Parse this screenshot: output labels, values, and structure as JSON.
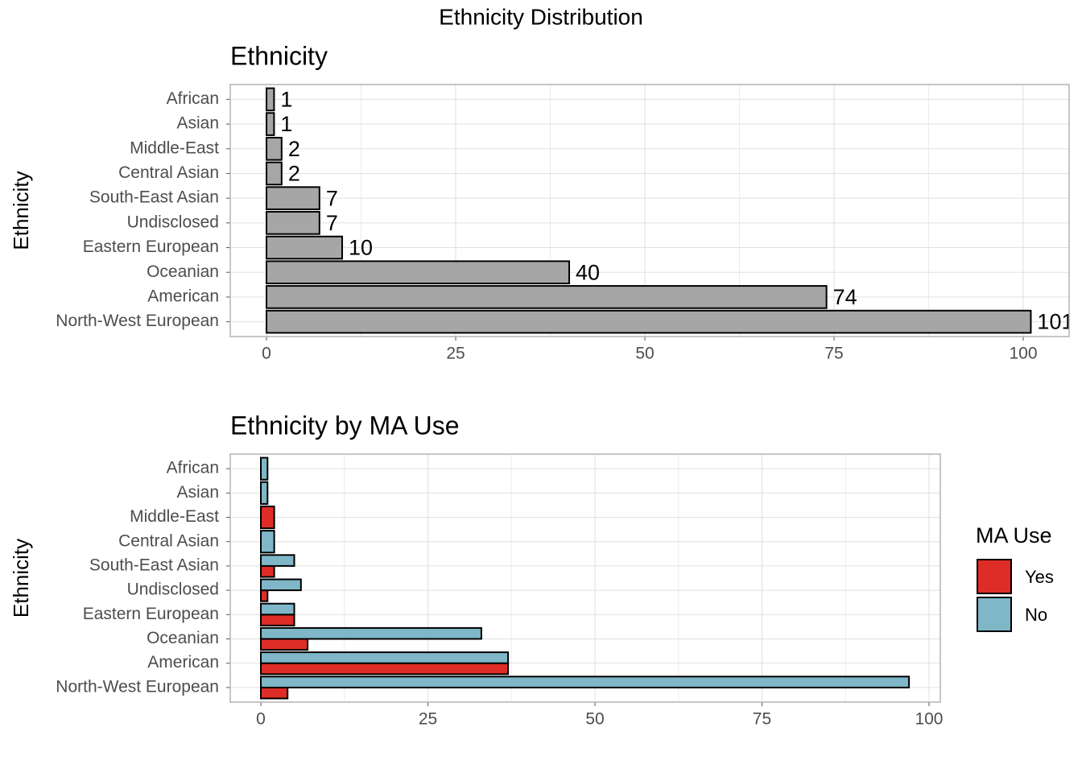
{
  "title": "Ethnicity Distribution",
  "chart_data": [
    {
      "type": "bar",
      "orientation": "horizontal",
      "title": "Ethnicity",
      "y_label": "Ethnicity",
      "categories": [
        "African",
        "Asian",
        "Middle-East",
        "Central Asian",
        "South-East Asian",
        "Undisclosed",
        "Eastern European",
        "Oceanian",
        "American",
        "North-West European"
      ],
      "values": [
        1,
        1,
        2,
        2,
        7,
        7,
        10,
        40,
        74,
        101
      ],
      "color": "#a6a6a6",
      "xlim": [
        -4.79,
        106.06
      ],
      "xticks": [
        0,
        25,
        50,
        75,
        100
      ],
      "grid": true,
      "data_labels": true
    },
    {
      "type": "dodged-bar",
      "orientation": "horizontal",
      "title": "Ethnicity by MA Use",
      "y_label": "Ethnicity",
      "categories": [
        "African",
        "Asian",
        "Middle-East",
        "Central Asian",
        "South-East Asian",
        "Undisclosed",
        "Eastern European",
        "Oceanian",
        "American",
        "North-West European"
      ],
      "series": [
        {
          "name": "Yes",
          "color": "#de2d26",
          "values": [
            null,
            null,
            2,
            null,
            2,
            1,
            5,
            7,
            37,
            4
          ]
        },
        {
          "name": "No",
          "color": "#7fb7c9",
          "values": [
            1,
            1,
            null,
            2,
            5,
            6,
            5,
            33,
            37,
            97
          ]
        }
      ],
      "legend_title": "MA Use",
      "legend": "right",
      "xlim": [
        -4.58,
        101.69
      ],
      "xticks": [
        0,
        25,
        50,
        75,
        100
      ],
      "grid": true
    }
  ]
}
